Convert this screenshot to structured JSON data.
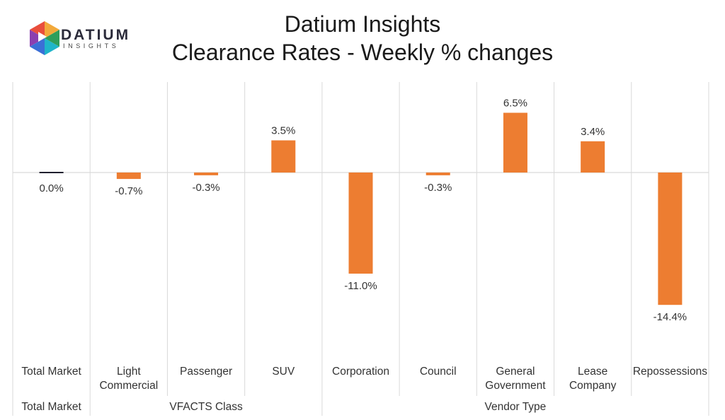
{
  "logo": {
    "word": "DATIUM",
    "sub": "INSIGHTS"
  },
  "title_line1": "Datium Insights",
  "title_line2": "Clearance Rates - Weekly % changes",
  "colors": {
    "bar": "#ED7D31",
    "zero_bar": "#1f1f2e",
    "grid": "#d9d9d9"
  },
  "chart_data": {
    "type": "bar",
    "title": "Datium Insights Clearance Rates - Weekly % changes",
    "categories": [
      [
        "Total Market"
      ],
      [
        "Light",
        "Commercial"
      ],
      [
        "Passenger"
      ],
      [
        "SUV"
      ],
      [
        "Corporation"
      ],
      [
        "Council"
      ],
      [
        "General",
        "Government"
      ],
      [
        "Lease",
        "Company"
      ],
      [
        "Repossessions"
      ]
    ],
    "groups": [
      {
        "label": "Total Market",
        "span": [
          0,
          0
        ]
      },
      {
        "label": "VFACTS Class",
        "span": [
          1,
          3
        ]
      },
      {
        "label": "Vendor Type",
        "span": [
          4,
          8
        ]
      }
    ],
    "values": [
      0.0,
      -0.7,
      -0.3,
      3.5,
      -11.0,
      -0.3,
      6.5,
      3.4,
      -14.4
    ],
    "data_labels": [
      "0.0%",
      "-0.7%",
      "-0.3%",
      "3.5%",
      "-11.0%",
      "-0.3%",
      "6.5%",
      "3.4%",
      "-14.4%"
    ],
    "ylim": [
      -20,
      10
    ],
    "unit": "%",
    "grid": false
  }
}
